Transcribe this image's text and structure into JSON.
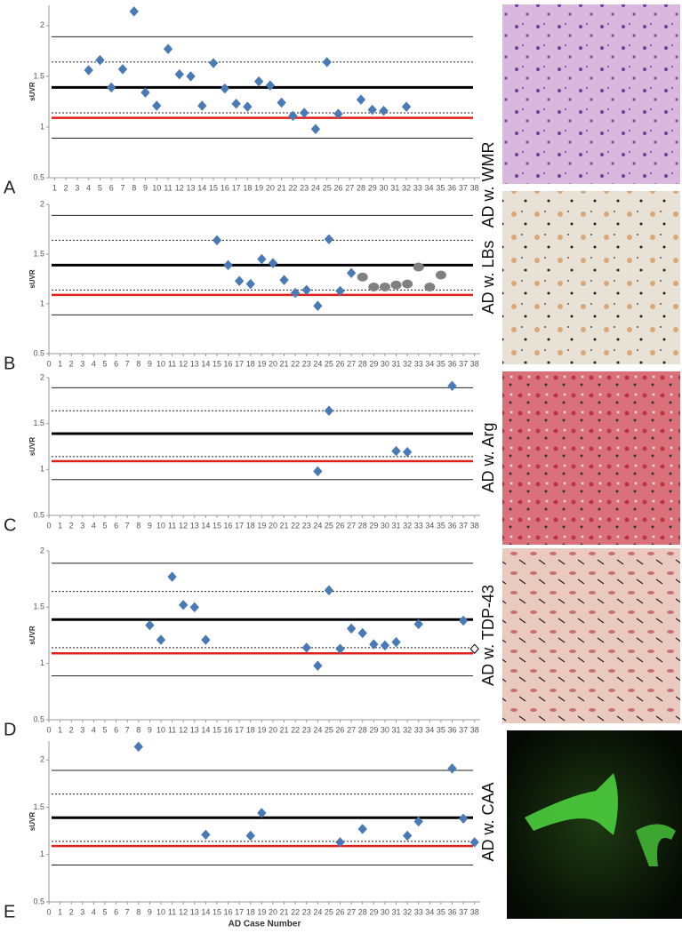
{
  "chart_data": [
    {
      "type": "scatter",
      "panel": "A",
      "y_label": "sUVR",
      "image_caption": "AD w. WMR",
      "xlim": [
        0.5,
        38.5
      ],
      "xticks": [
        1,
        2,
        3,
        4,
        5,
        6,
        7,
        8,
        9,
        10,
        11,
        12,
        13,
        14,
        15,
        16,
        17,
        18,
        19,
        20,
        21,
        22,
        23,
        24,
        25,
        26,
        27,
        28,
        29,
        30,
        31,
        32,
        33,
        34,
        35,
        36,
        37,
        38
      ],
      "ylim": [
        0.5,
        2.2
      ],
      "yticks": [
        0.5,
        1,
        1.5,
        2
      ],
      "reference_lines": [
        {
          "value": 1.89,
          "style": "thin"
        },
        {
          "value": 1.64,
          "style": "dashed"
        },
        {
          "value": 1.39,
          "style": "thick"
        },
        {
          "value": 1.14,
          "style": "dashed"
        },
        {
          "value": 1.09,
          "style": "red"
        },
        {
          "value": 0.89,
          "style": "thin"
        }
      ],
      "series": [
        {
          "marker": "diamond",
          "color": "#4a7ab5",
          "fill": "#4a7ab5",
          "x": [
            4,
            5,
            6,
            7,
            8,
            9,
            10,
            11,
            12,
            13,
            14,
            15,
            16,
            17,
            18,
            19,
            20,
            21,
            22,
            23,
            24,
            25,
            26,
            28,
            29,
            30,
            32
          ],
          "values": [
            1.56,
            1.66,
            1.39,
            1.57,
            2.14,
            1.34,
            1.21,
            1.77,
            1.52,
            1.5,
            1.21,
            1.63,
            1.38,
            1.23,
            1.2,
            1.45,
            1.41,
            1.24,
            1.11,
            1.14,
            0.98,
            1.64,
            1.13,
            1.27,
            1.17,
            1.16,
            1.2
          ]
        }
      ]
    },
    {
      "type": "scatter",
      "panel": "B",
      "y_label": "sUVR",
      "image_caption": "AD w. LBs",
      "xlim": [
        0,
        38.5
      ],
      "xticks": [
        0,
        1,
        2,
        3,
        4,
        5,
        6,
        7,
        8,
        9,
        10,
        11,
        12,
        13,
        14,
        15,
        16,
        17,
        18,
        19,
        20,
        21,
        22,
        23,
        24,
        25,
        26,
        27,
        28,
        29,
        30,
        31,
        32,
        33,
        34,
        35,
        36,
        37,
        38
      ],
      "ylim": [
        0.5,
        2
      ],
      "yticks": [
        0.5,
        1,
        1.5,
        2
      ],
      "reference_lines": [
        {
          "value": 1.89,
          "style": "thin"
        },
        {
          "value": 1.64,
          "style": "dashed"
        },
        {
          "value": 1.39,
          "style": "thick"
        },
        {
          "value": 1.14,
          "style": "dashed"
        },
        {
          "value": 1.09,
          "style": "red"
        },
        {
          "value": 0.89,
          "style": "thin"
        }
      ],
      "series": [
        {
          "marker": "diamond",
          "color": "#4a7ab5",
          "fill": "#4a7ab5",
          "x": [
            15,
            16,
            17,
            18,
            19,
            20,
            21,
            22,
            23,
            24,
            25,
            26,
            27
          ],
          "values": [
            1.64,
            1.39,
            1.23,
            1.2,
            1.45,
            1.41,
            1.24,
            1.11,
            1.14,
            0.98,
            1.65,
            1.13,
            1.31
          ]
        },
        {
          "marker": "circle",
          "color": "#808080",
          "fill": "#808080",
          "x": [
            28,
            29,
            30,
            31,
            32,
            33,
            34,
            35
          ],
          "values": [
            1.27,
            1.17,
            1.17,
            1.19,
            1.2,
            1.37,
            1.17,
            1.29
          ]
        }
      ]
    },
    {
      "type": "scatter",
      "panel": "C",
      "y_label": "sUVR",
      "image_caption": "AD w. Arg",
      "xlim": [
        0,
        38.5
      ],
      "xticks": [
        0,
        1,
        2,
        3,
        4,
        5,
        6,
        7,
        8,
        9,
        10,
        11,
        12,
        13,
        14,
        15,
        16,
        17,
        18,
        19,
        20,
        21,
        22,
        23,
        24,
        25,
        26,
        27,
        28,
        29,
        30,
        31,
        32,
        33,
        34,
        35,
        36,
        37,
        38
      ],
      "ylim": [
        0.5,
        2
      ],
      "yticks": [
        0.5,
        1,
        1.5,
        2
      ],
      "reference_lines": [
        {
          "value": 1.89,
          "style": "thin"
        },
        {
          "value": 1.64,
          "style": "dashed"
        },
        {
          "value": 1.39,
          "style": "thick"
        },
        {
          "value": 1.14,
          "style": "dashed"
        },
        {
          "value": 1.09,
          "style": "red"
        },
        {
          "value": 0.89,
          "style": "thin"
        }
      ],
      "series": [
        {
          "marker": "diamond",
          "color": "#4a7ab5",
          "fill": "#4a7ab5",
          "x": [
            24,
            25,
            31,
            32,
            36
          ],
          "values": [
            0.98,
            1.64,
            1.2,
            1.19,
            1.91
          ]
        }
      ]
    },
    {
      "type": "scatter",
      "panel": "D",
      "y_label": "sUVR",
      "image_caption": "AD w. TDP-43",
      "xlim": [
        0,
        38.5
      ],
      "xticks": [
        0,
        1,
        2,
        3,
        4,
        5,
        6,
        7,
        8,
        9,
        10,
        11,
        12,
        13,
        14,
        15,
        16,
        17,
        18,
        19,
        20,
        21,
        22,
        23,
        24,
        25,
        26,
        27,
        28,
        29,
        30,
        31,
        32,
        33,
        34,
        35,
        36,
        37,
        38
      ],
      "ylim": [
        0.5,
        2
      ],
      "yticks": [
        0.5,
        1,
        1.5,
        2
      ],
      "reference_lines": [
        {
          "value": 1.89,
          "style": "thin"
        },
        {
          "value": 1.64,
          "style": "dashed"
        },
        {
          "value": 1.39,
          "style": "thick"
        },
        {
          "value": 1.14,
          "style": "dashed"
        },
        {
          "value": 1.09,
          "style": "red"
        },
        {
          "value": 0.89,
          "style": "thin"
        }
      ],
      "series": [
        {
          "marker": "diamond",
          "color": "#4a7ab5",
          "fill": "#4a7ab5",
          "x": [
            9,
            10,
            11,
            12,
            13,
            14,
            23,
            24,
            25,
            26,
            27,
            28,
            29,
            30,
            31,
            33,
            37
          ],
          "values": [
            1.34,
            1.21,
            1.77,
            1.52,
            1.5,
            1.21,
            1.14,
            0.98,
            1.65,
            1.13,
            1.31,
            1.27,
            1.17,
            1.16,
            1.19,
            1.35,
            1.38
          ]
        },
        {
          "marker": "diamond",
          "color": "#000000",
          "fill": "#ffffff",
          "x": [
            38
          ],
          "values": [
            1.13
          ]
        }
      ]
    },
    {
      "type": "scatter",
      "panel": "E",
      "y_label": "sUVR",
      "x_label": "AD Case Number",
      "image_caption": "AD w. CAA",
      "xlim": [
        0,
        38.5
      ],
      "xticks": [
        0,
        1,
        2,
        3,
        4,
        5,
        6,
        7,
        8,
        9,
        10,
        11,
        12,
        13,
        14,
        15,
        16,
        17,
        18,
        19,
        20,
        21,
        22,
        23,
        24,
        25,
        26,
        27,
        28,
        29,
        30,
        31,
        32,
        33,
        34,
        35,
        36,
        37,
        38
      ],
      "ylim": [
        0.5,
        2.2
      ],
      "yticks": [
        0.5,
        1,
        1.5,
        2
      ],
      "reference_lines": [
        {
          "value": 1.89,
          "style": "thin"
        },
        {
          "value": 1.64,
          "style": "dashed"
        },
        {
          "value": 1.39,
          "style": "thick"
        },
        {
          "value": 1.14,
          "style": "dashed"
        },
        {
          "value": 1.09,
          "style": "red"
        },
        {
          "value": 0.89,
          "style": "thin"
        }
      ],
      "series": [
        {
          "marker": "diamond",
          "color": "#4a7ab5",
          "fill": "#4a7ab5",
          "x": [
            8,
            14,
            18,
            19,
            26,
            28,
            32,
            33,
            36,
            37,
            38
          ],
          "values": [
            2.14,
            1.21,
            1.2,
            1.44,
            1.13,
            1.27,
            1.2,
            1.35,
            1.91,
            1.38,
            1.13
          ]
        }
      ]
    }
  ]
}
